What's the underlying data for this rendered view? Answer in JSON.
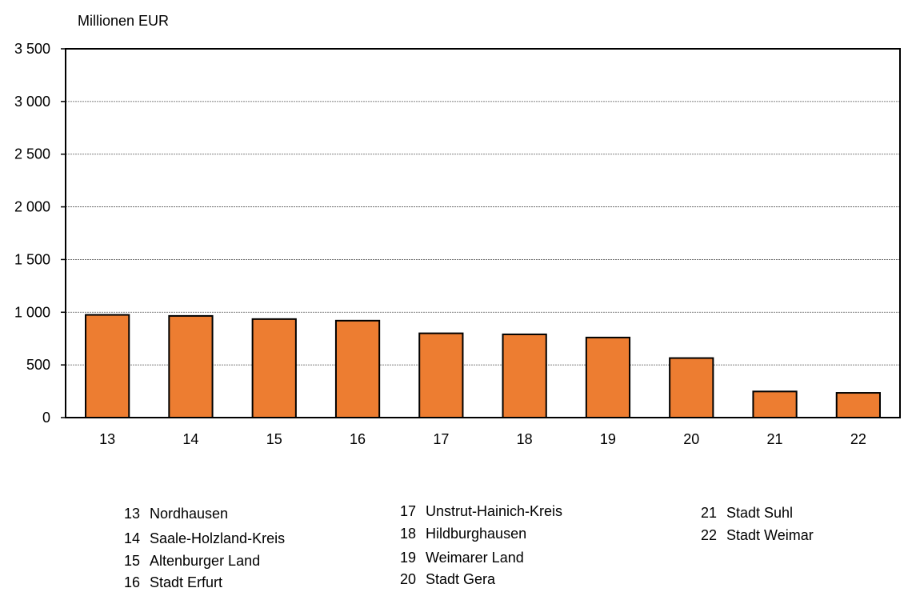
{
  "chart_data": {
    "type": "bar",
    "ylabel": "Millionen EUR",
    "categories": [
      "13",
      "14",
      "15",
      "16",
      "17",
      "18",
      "19",
      "20",
      "21",
      "22"
    ],
    "values": [
      975,
      965,
      935,
      920,
      800,
      790,
      760,
      565,
      248,
      235
    ],
    "ylim": [
      0,
      3500
    ],
    "yticks": [
      0,
      500,
      1000,
      1500,
      2000,
      2500,
      3000,
      3500
    ],
    "ytick_labels": [
      "0",
      "500",
      "1 000",
      "1 500",
      "2 000",
      "2 500",
      "3 000",
      "3 500"
    ],
    "grid": true,
    "bar_color": "#ED7D31",
    "legend": [
      {
        "num": "13",
        "name": "Nordhausen"
      },
      {
        "num": "14",
        "name": "Saale-Holzland-Kreis"
      },
      {
        "num": "15",
        "name": "Altenburger Land"
      },
      {
        "num": "16",
        "name": "Stadt Erfurt"
      },
      {
        "num": "17",
        "name": "Unstrut-Hainich-Kreis"
      },
      {
        "num": "18",
        "name": "Hildburghausen"
      },
      {
        "num": "19",
        "name": "Weimarer Land"
      },
      {
        "num": "20",
        "name": "Stadt Gera"
      },
      {
        "num": "21",
        "name": "Stadt Suhl"
      },
      {
        "num": "22",
        "name": "Stadt Weimar"
      }
    ]
  }
}
